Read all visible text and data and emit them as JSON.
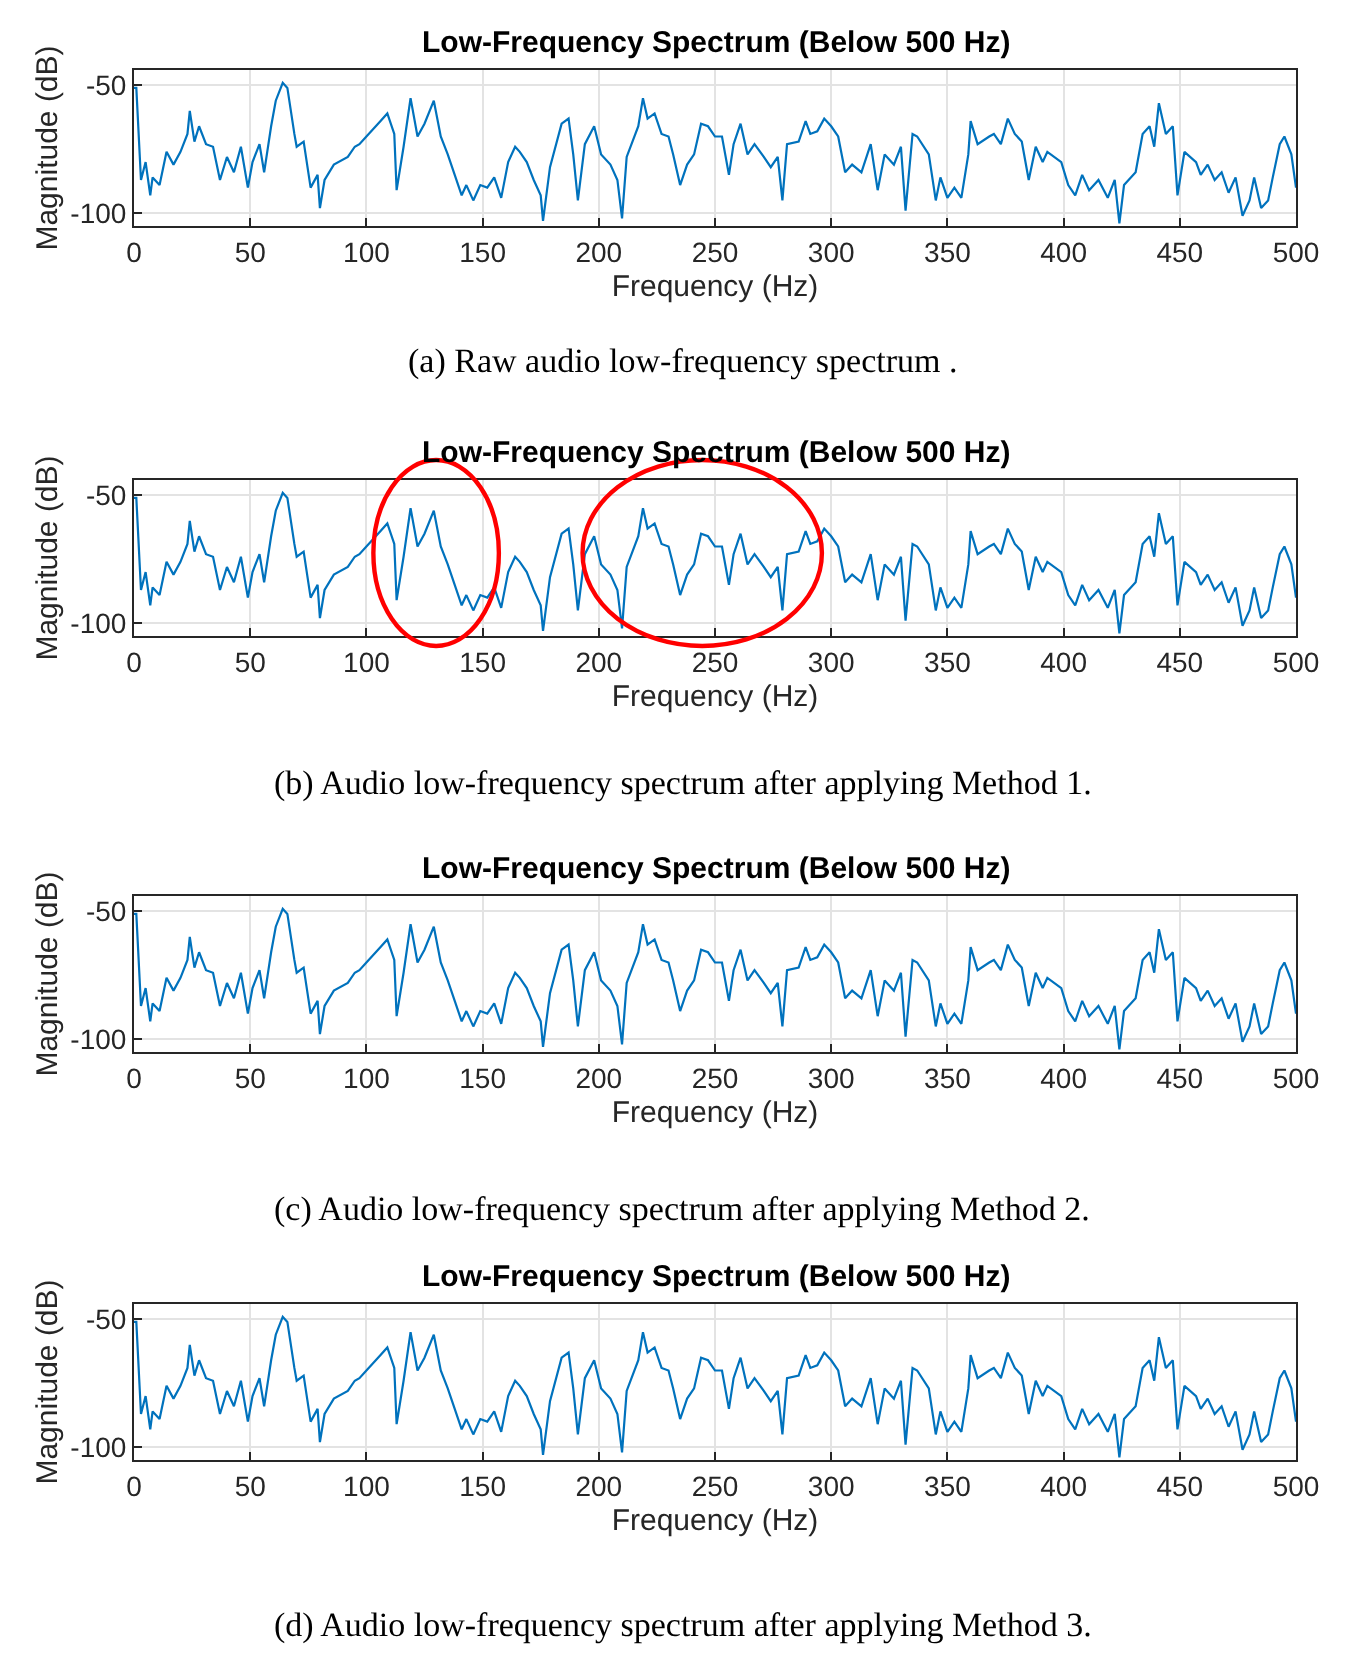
{
  "chart_data": [
    {
      "type": "line",
      "title": "Low-Frequency Spectrum (Below 500 Hz)",
      "xlabel": "Frequency (Hz)",
      "ylabel": "Magnitude (dB)",
      "annotations": [
        "(a) Raw audio low-frequency spectrum ."
      ],
      "xlim": [
        0,
        500
      ],
      "ylim": [
        -105,
        -44
      ],
      "xticks": [
        0,
        50,
        100,
        150,
        200,
        250,
        300,
        350,
        400,
        450,
        500
      ],
      "yticks": [
        -100,
        -50
      ],
      "grid": true,
      "marker": "none",
      "line_style": "solid",
      "x": [
        0,
        1,
        3,
        5,
        7,
        8,
        11,
        14,
        17,
        20,
        23,
        24,
        26,
        28,
        31,
        34,
        37,
        40,
        43,
        46,
        49,
        51,
        54,
        56,
        59,
        61,
        64,
        66,
        69,
        70,
        73,
        76,
        79,
        80,
        82,
        86,
        92,
        95,
        97,
        100,
        106,
        109,
        112,
        113,
        116,
        119,
        122,
        125,
        129,
        132,
        135,
        138,
        141,
        143,
        146,
        149,
        152,
        155,
        158,
        161,
        164,
        166,
        169,
        172,
        175,
        176,
        179,
        184,
        187,
        189,
        191,
        194,
        198,
        201,
        205,
        208,
        210,
        212,
        217,
        219,
        221,
        224,
        227,
        230,
        232,
        235,
        238,
        241,
        244,
        247,
        250,
        253,
        256,
        258,
        261,
        264,
        267,
        271,
        274,
        277,
        279,
        281,
        286,
        289,
        291,
        294,
        297,
        300,
        303,
        306,
        309,
        313,
        317,
        320,
        323,
        327,
        330,
        332,
        335,
        337,
        342,
        345,
        347,
        350,
        353,
        356,
        359,
        360,
        363,
        368,
        370,
        373,
        376,
        379,
        382,
        385,
        388,
        391,
        393,
        399,
        402,
        405,
        408,
        411,
        415,
        419,
        422,
        424,
        426,
        431,
        434,
        437,
        439,
        441,
        444,
        447,
        449,
        452,
        457,
        459,
        462,
        465,
        468,
        471,
        474,
        477,
        480,
        482,
        485,
        488,
        490,
        493,
        495,
        498,
        500
      ],
      "series": [
        {
          "color": "#0072bd",
          "values": [
            -51,
            -51,
            -87,
            -80,
            -93,
            -86,
            -89,
            -76,
            -81,
            -76,
            -69,
            -60,
            -72,
            -66,
            -73,
            -74,
            -87,
            -78,
            -84,
            -74,
            -90,
            -80,
            -73,
            -84,
            -66,
            -56,
            -49,
            -51,
            -69,
            -74,
            -72,
            -90,
            -85,
            -98,
            -87,
            -81,
            -78,
            -74,
            -73,
            -70,
            -64,
            -61,
            -69,
            -91,
            -74,
            -55,
            -70,
            -65,
            -56,
            -70,
            -77,
            -85,
            -93,
            -89,
            -95,
            -89,
            -90,
            -86,
            -94,
            -80,
            -74,
            -76,
            -80,
            -87,
            -93,
            -103,
            -82,
            -65,
            -63,
            -77,
            -95,
            -73,
            -66,
            -77,
            -81,
            -87,
            -102,
            -78,
            -66,
            -55,
            -63,
            -61,
            -69,
            -70,
            -77,
            -89,
            -81,
            -77,
            -65,
            -66,
            -70,
            -70,
            -85,
            -73,
            -65,
            -77,
            -73,
            -78,
            -82,
            -78,
            -95,
            -73,
            -72,
            -64,
            -69,
            -68,
            -63,
            -66,
            -70,
            -84,
            -81,
            -84,
            -73,
            -91,
            -77,
            -81,
            -74,
            -99,
            -69,
            -70,
            -77,
            -95,
            -86,
            -94,
            -90,
            -94,
            -77,
            -64,
            -73,
            -70,
            -69,
            -73,
            -63,
            -69,
            -72,
            -87,
            -74,
            -80,
            -76,
            -80,
            -89,
            -93,
            -85,
            -91,
            -87,
            -94,
            -87,
            -104,
            -89,
            -84,
            -69,
            -66,
            -74,
            -57,
            -69,
            -66,
            -93,
            -76,
            -80,
            -85,
            -81,
            -87,
            -84,
            -92,
            -86,
            -101,
            -95,
            -86,
            -98,
            -95,
            -86,
            -73,
            -70,
            -77,
            -90
          ]
        }
      ]
    },
    {
      "type": "line",
      "title": "Low-Frequency Spectrum (Below 500 Hz)",
      "xlabel": "Frequency (Hz)",
      "ylabel": "Magnitude (dB)",
      "annotations": [
        "(b) Audio low-frequency spectrum after applying Method 1."
      ],
      "xlim": [
        0,
        500
      ],
      "ylim": [
        -105,
        -44
      ],
      "xticks": [
        0,
        50,
        100,
        150,
        200,
        250,
        300,
        350,
        400,
        450,
        500
      ],
      "yticks": [
        -100,
        -50
      ],
      "grid": true,
      "marker": "none",
      "line_style": "solid",
      "x": [
        0,
        1,
        3,
        5,
        7,
        8,
        11,
        14,
        17,
        20,
        23,
        24,
        26,
        28,
        31,
        34,
        37,
        40,
        43,
        46,
        49,
        51,
        54,
        56,
        59,
        61,
        64,
        66,
        69,
        70,
        73,
        76,
        79,
        80,
        82,
        86,
        92,
        95,
        97,
        100,
        106,
        109,
        112,
        113,
        116,
        119,
        122,
        125,
        129,
        132,
        135,
        138,
        141,
        143,
        146,
        149,
        152,
        155,
        158,
        161,
        164,
        166,
        169,
        172,
        175,
        176,
        179,
        184,
        187,
        189,
        191,
        194,
        198,
        201,
        205,
        208,
        210,
        212,
        217,
        219,
        221,
        224,
        227,
        230,
        232,
        235,
        238,
        241,
        244,
        247,
        250,
        253,
        256,
        258,
        261,
        264,
        267,
        271,
        274,
        277,
        279,
        281,
        286,
        289,
        291,
        294,
        297,
        300,
        303,
        306,
        309,
        313,
        317,
        320,
        323,
        327,
        330,
        332,
        335,
        337,
        342,
        345,
        347,
        350,
        353,
        356,
        359,
        360,
        363,
        368,
        370,
        373,
        376,
        379,
        382,
        385,
        388,
        391,
        393,
        399,
        402,
        405,
        408,
        411,
        415,
        419,
        422,
        424,
        426,
        431,
        434,
        437,
        439,
        441,
        444,
        447,
        449,
        452,
        457,
        459,
        462,
        465,
        468,
        471,
        474,
        477,
        480,
        482,
        485,
        488,
        490,
        493,
        495,
        498,
        500
      ],
      "series": [
        {
          "color": "#0072bd",
          "values": [
            -51,
            -51,
            -87,
            -80,
            -93,
            -86,
            -89,
            -76,
            -81,
            -76,
            -69,
            -60,
            -72,
            -66,
            -73,
            -74,
            -87,
            -78,
            -84,
            -74,
            -90,
            -80,
            -73,
            -84,
            -66,
            -56,
            -49,
            -51,
            -69,
            -74,
            -72,
            -90,
            -85,
            -98,
            -87,
            -81,
            -78,
            -74,
            -73,
            -70,
            -64,
            -61,
            -69,
            -91,
            -74,
            -55,
            -70,
            -65,
            -56,
            -70,
            -77,
            -85,
            -93,
            -89,
            -95,
            -89,
            -90,
            -86,
            -94,
            -80,
            -74,
            -76,
            -80,
            -87,
            -93,
            -103,
            -82,
            -65,
            -63,
            -77,
            -95,
            -73,
            -66,
            -77,
            -81,
            -87,
            -102,
            -78,
            -66,
            -55,
            -63,
            -61,
            -69,
            -70,
            -77,
            -89,
            -81,
            -77,
            -65,
            -66,
            -70,
            -70,
            -85,
            -73,
            -65,
            -77,
            -73,
            -78,
            -82,
            -78,
            -95,
            -73,
            -72,
            -64,
            -69,
            -68,
            -63,
            -66,
            -70,
            -84,
            -81,
            -84,
            -73,
            -91,
            -77,
            -81,
            -74,
            -99,
            -69,
            -70,
            -77,
            -95,
            -86,
            -94,
            -90,
            -94,
            -77,
            -64,
            -73,
            -70,
            -69,
            -73,
            -63,
            -69,
            -72,
            -87,
            -74,
            -80,
            -76,
            -80,
            -89,
            -93,
            -85,
            -91,
            -87,
            -94,
            -87,
            -104,
            -89,
            -84,
            -69,
            -66,
            -74,
            -57,
            -69,
            -66,
            -93,
            -76,
            -80,
            -85,
            -81,
            -87,
            -84,
            -92,
            -86,
            -101,
            -95,
            -86,
            -98,
            -95,
            -86,
            -73,
            -70,
            -77,
            -90
          ]
        }
      ]
    },
    {
      "type": "line",
      "title": "Low-Frequency Spectrum (Below 500 Hz)",
      "xlabel": "Frequency (Hz)",
      "ylabel": "Magnitude (dB)",
      "annotations": [
        "(c) Audio low-frequency spectrum after applying Method 2."
      ],
      "xlim": [
        0,
        500
      ],
      "ylim": [
        -105,
        -44
      ],
      "xticks": [
        0,
        50,
        100,
        150,
        200,
        250,
        300,
        350,
        400,
        450,
        500
      ],
      "yticks": [
        -100,
        -50
      ],
      "grid": true,
      "marker": "none",
      "line_style": "solid",
      "x": [
        0,
        1,
        3,
        5,
        7,
        8,
        11,
        14,
        17,
        20,
        23,
        24,
        26,
        28,
        31,
        34,
        37,
        40,
        43,
        46,
        49,
        51,
        54,
        56,
        59,
        61,
        64,
        66,
        69,
        70,
        73,
        76,
        79,
        80,
        82,
        86,
        92,
        95,
        97,
        100,
        106,
        109,
        112,
        113,
        116,
        119,
        122,
        125,
        129,
        132,
        135,
        138,
        141,
        143,
        146,
        149,
        152,
        155,
        158,
        161,
        164,
        166,
        169,
        172,
        175,
        176,
        179,
        184,
        187,
        189,
        191,
        194,
        198,
        201,
        205,
        208,
        210,
        212,
        217,
        219,
        221,
        224,
        227,
        230,
        232,
        235,
        238,
        241,
        244,
        247,
        250,
        253,
        256,
        258,
        261,
        264,
        267,
        271,
        274,
        277,
        279,
        281,
        286,
        289,
        291,
        294,
        297,
        300,
        303,
        306,
        309,
        313,
        317,
        320,
        323,
        327,
        330,
        332,
        335,
        337,
        342,
        345,
        347,
        350,
        353,
        356,
        359,
        360,
        363,
        368,
        370,
        373,
        376,
        379,
        382,
        385,
        388,
        391,
        393,
        399,
        402,
        405,
        408,
        411,
        415,
        419,
        422,
        424,
        426,
        431,
        434,
        437,
        439,
        441,
        444,
        447,
        449,
        452,
        457,
        459,
        462,
        465,
        468,
        471,
        474,
        477,
        480,
        482,
        485,
        488,
        490,
        493,
        495,
        498,
        500
      ],
      "series": [
        {
          "color": "#0072bd",
          "values": [
            -51,
            -51,
            -87,
            -80,
            -93,
            -86,
            -89,
            -76,
            -81,
            -76,
            -69,
            -60,
            -72,
            -66,
            -73,
            -74,
            -87,
            -78,
            -84,
            -74,
            -90,
            -80,
            -73,
            -84,
            -66,
            -56,
            -49,
            -51,
            -69,
            -74,
            -72,
            -90,
            -85,
            -98,
            -87,
            -81,
            -78,
            -74,
            -73,
            -70,
            -64,
            -61,
            -69,
            -91,
            -74,
            -55,
            -70,
            -65,
            -56,
            -70,
            -77,
            -85,
            -93,
            -89,
            -95,
            -89,
            -90,
            -86,
            -94,
            -80,
            -74,
            -76,
            -80,
            -87,
            -93,
            -103,
            -82,
            -65,
            -63,
            -77,
            -95,
            -73,
            -66,
            -77,
            -81,
            -87,
            -102,
            -78,
            -66,
            -55,
            -63,
            -61,
            -69,
            -70,
            -77,
            -89,
            -81,
            -77,
            -65,
            -66,
            -70,
            -70,
            -85,
            -73,
            -65,
            -77,
            -73,
            -78,
            -82,
            -78,
            -95,
            -73,
            -72,
            -64,
            -69,
            -68,
            -63,
            -66,
            -70,
            -84,
            -81,
            -84,
            -73,
            -91,
            -77,
            -81,
            -74,
            -99,
            -69,
            -70,
            -77,
            -95,
            -86,
            -94,
            -90,
            -94,
            -77,
            -64,
            -73,
            -70,
            -69,
            -73,
            -63,
            -69,
            -72,
            -87,
            -74,
            -80,
            -76,
            -80,
            -89,
            -93,
            -85,
            -91,
            -87,
            -94,
            -87,
            -104,
            -89,
            -84,
            -69,
            -66,
            -74,
            -57,
            -69,
            -66,
            -93,
            -76,
            -80,
            -85,
            -81,
            -87,
            -84,
            -92,
            -86,
            -101,
            -95,
            -86,
            -98,
            -95,
            -86,
            -73,
            -70,
            -77,
            -90
          ]
        }
      ]
    },
    {
      "type": "line",
      "title": "Low-Frequency Spectrum (Below 500 Hz)",
      "xlabel": "Frequency (Hz)",
      "ylabel": "Magnitude (dB)",
      "annotations": [
        "(d) Audio low-frequency spectrum after applying Method 3."
      ],
      "xlim": [
        0,
        500
      ],
      "ylim": [
        -105,
        -44
      ],
      "xticks": [
        0,
        50,
        100,
        150,
        200,
        250,
        300,
        350,
        400,
        450,
        500
      ],
      "yticks": [
        -100,
        -50
      ],
      "grid": true,
      "marker": "none",
      "line_style": "solid",
      "x": [
        0,
        1,
        3,
        5,
        7,
        8,
        11,
        14,
        17,
        20,
        23,
        24,
        26,
        28,
        31,
        34,
        37,
        40,
        43,
        46,
        49,
        51,
        54,
        56,
        59,
        61,
        64,
        66,
        69,
        70,
        73,
        76,
        79,
        80,
        82,
        86,
        92,
        95,
        97,
        100,
        106,
        109,
        112,
        113,
        116,
        119,
        122,
        125,
        129,
        132,
        135,
        138,
        141,
        143,
        146,
        149,
        152,
        155,
        158,
        161,
        164,
        166,
        169,
        172,
        175,
        176,
        179,
        184,
        187,
        189,
        191,
        194,
        198,
        201,
        205,
        208,
        210,
        212,
        217,
        219,
        221,
        224,
        227,
        230,
        232,
        235,
        238,
        241,
        244,
        247,
        250,
        253,
        256,
        258,
        261,
        264,
        267,
        271,
        274,
        277,
        279,
        281,
        286,
        289,
        291,
        294,
        297,
        300,
        303,
        306,
        309,
        313,
        317,
        320,
        323,
        327,
        330,
        332,
        335,
        337,
        342,
        345,
        347,
        350,
        353,
        356,
        359,
        360,
        363,
        368,
        370,
        373,
        376,
        379,
        382,
        385,
        388,
        391,
        393,
        399,
        402,
        405,
        408,
        411,
        415,
        419,
        422,
        424,
        426,
        431,
        434,
        437,
        439,
        441,
        444,
        447,
        449,
        452,
        457,
        459,
        462,
        465,
        468,
        471,
        474,
        477,
        480,
        482,
        485,
        488,
        490,
        493,
        495,
        498,
        500
      ],
      "series": [
        {
          "color": "#0072bd",
          "values": [
            -51,
            -51,
            -87,
            -80,
            -93,
            -86,
            -89,
            -76,
            -81,
            -76,
            -69,
            -60,
            -72,
            -66,
            -73,
            -74,
            -87,
            -78,
            -84,
            -74,
            -90,
            -80,
            -73,
            -84,
            -66,
            -56,
            -49,
            -51,
            -69,
            -74,
            -72,
            -90,
            -85,
            -98,
            -87,
            -81,
            -78,
            -74,
            -73,
            -70,
            -64,
            -61,
            -69,
            -91,
            -74,
            -55,
            -70,
            -65,
            -56,
            -70,
            -77,
            -85,
            -93,
            -89,
            -95,
            -89,
            -90,
            -86,
            -94,
            -80,
            -74,
            -76,
            -80,
            -87,
            -93,
            -103,
            -82,
            -65,
            -63,
            -77,
            -95,
            -73,
            -66,
            -77,
            -81,
            -87,
            -102,
            -78,
            -66,
            -55,
            -63,
            -61,
            -69,
            -70,
            -77,
            -89,
            -81,
            -77,
            -65,
            -66,
            -70,
            -70,
            -85,
            -73,
            -65,
            -77,
            -73,
            -78,
            -82,
            -78,
            -95,
            -73,
            -72,
            -64,
            -69,
            -68,
            -63,
            -66,
            -70,
            -84,
            -81,
            -84,
            -73,
            -91,
            -77,
            -81,
            -74,
            -99,
            -69,
            -70,
            -77,
            -95,
            -86,
            -94,
            -90,
            -94,
            -77,
            -64,
            -73,
            -70,
            -69,
            -73,
            -63,
            -69,
            -72,
            -87,
            -74,
            -80,
            -76,
            -80,
            -89,
            -93,
            -85,
            -91,
            -87,
            -94,
            -87,
            -104,
            -89,
            -84,
            -69,
            -66,
            -74,
            -57,
            -69,
            -66,
            -93,
            -76,
            -80,
            -85,
            -81,
            -87,
            -84,
            -92,
            -86,
            -101,
            -95,
            -86,
            -98,
            -95,
            -86,
            -73,
            -70,
            -77,
            -90
          ]
        }
      ]
    }
  ]
}
